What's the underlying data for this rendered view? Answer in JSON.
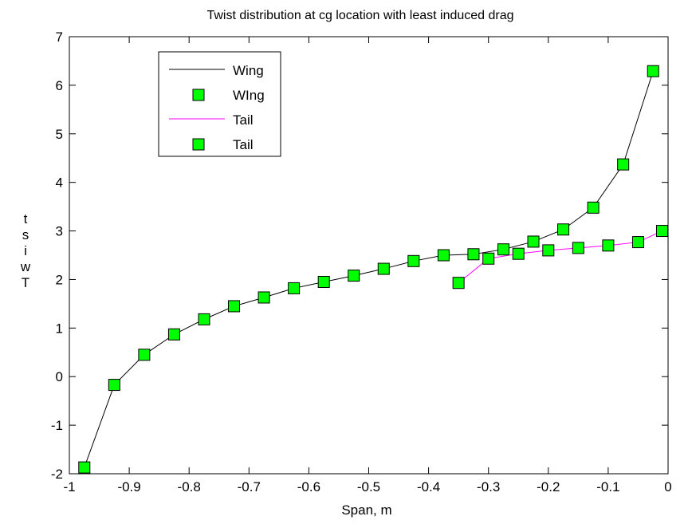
{
  "chart_data": {
    "type": "line",
    "title": "Twist distribution at cg location with least induced drag",
    "xlabel": "Span, m",
    "ylabel": "Twist",
    "xlim": [
      -1,
      0
    ],
    "ylim": [
      -2,
      7
    ],
    "xticks": [
      -1,
      -0.9,
      -0.8,
      -0.7,
      -0.6,
      -0.5,
      -0.4,
      -0.3,
      -0.2,
      -0.1,
      0
    ],
    "xtick_labels": [
      "-1",
      "-0.9",
      "-0.8",
      "-0.7",
      "-0.6",
      "-0.5",
      "-0.4",
      "-0.3",
      "-0.2",
      "-0.1",
      "0"
    ],
    "yticks": [
      -2,
      -1,
      0,
      1,
      2,
      3,
      4,
      5,
      6,
      7
    ],
    "ytick_labels": [
      "-2",
      "-1",
      "0",
      "1",
      "2",
      "3",
      "4",
      "5",
      "6",
      "7"
    ],
    "grid": false,
    "legend_position": "top-left",
    "legend": [
      {
        "label": "Wing",
        "style": "line",
        "color": "#000000"
      },
      {
        "label": "WIng",
        "style": "marker",
        "color": "#00ff00"
      },
      {
        "label": "Tail",
        "style": "line",
        "color": "#ff00ff"
      },
      {
        "label": "Tail",
        "style": "marker",
        "color": "#00ff00"
      }
    ],
    "series": [
      {
        "name": "Wing",
        "line_color": "#000000",
        "marker": "square",
        "marker_color": "#00ff00",
        "x": [
          -0.975,
          -0.925,
          -0.875,
          -0.825,
          -0.775,
          -0.725,
          -0.675,
          -0.625,
          -0.575,
          -0.525,
          -0.475,
          -0.425,
          -0.375,
          -0.325,
          -0.275,
          -0.225,
          -0.175,
          -0.125,
          -0.075,
          -0.025
        ],
        "y": [
          -1.87,
          -0.17,
          0.45,
          0.87,
          1.18,
          1.45,
          1.63,
          1.82,
          1.95,
          2.08,
          2.22,
          2.38,
          2.5,
          2.52,
          2.62,
          2.78,
          3.03,
          3.48,
          4.37,
          6.29
        ]
      },
      {
        "name": "Tail",
        "line_color": "#ff00ff",
        "marker": "square",
        "marker_color": "#00ff00",
        "x": [
          -0.35,
          -0.3,
          -0.25,
          -0.2,
          -0.15,
          -0.1,
          -0.05,
          -0.01
        ],
        "y": [
          1.93,
          2.43,
          2.53,
          2.6,
          2.65,
          2.7,
          2.77,
          3.0
        ]
      }
    ]
  }
}
